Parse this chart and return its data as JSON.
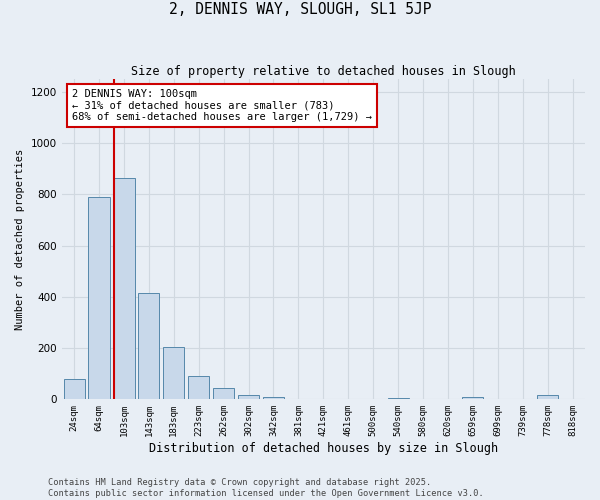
{
  "title": "2, DENNIS WAY, SLOUGH, SL1 5JP",
  "subtitle": "Size of property relative to detached houses in Slough",
  "xlabel": "Distribution of detached houses by size in Slough",
  "ylabel": "Number of detached properties",
  "bins": [
    "24sqm",
    "64sqm",
    "103sqm",
    "143sqm",
    "183sqm",
    "223sqm",
    "262sqm",
    "302sqm",
    "342sqm",
    "381sqm",
    "421sqm",
    "461sqm",
    "500sqm",
    "540sqm",
    "580sqm",
    "620sqm",
    "659sqm",
    "699sqm",
    "739sqm",
    "778sqm",
    "818sqm"
  ],
  "values": [
    80,
    790,
    865,
    415,
    205,
    90,
    45,
    15,
    10,
    0,
    0,
    0,
    0,
    5,
    0,
    0,
    10,
    0,
    0,
    15,
    0
  ],
  "bar_color": "#c8d8ea",
  "bar_edge_color": "#5588aa",
  "background_color": "#e8eef5",
  "grid_color": "#d0d8e0",
  "vline_x_index": 1.62,
  "vline_color": "#cc0000",
  "annotation_text": "2 DENNIS WAY: 100sqm\n← 31% of detached houses are smaller (783)\n68% of semi-detached houses are larger (1,729) →",
  "annotation_box_color": "#ffffff",
  "annotation_box_edge": "#cc0000",
  "footnote1": "Contains HM Land Registry data © Crown copyright and database right 2025.",
  "footnote2": "Contains public sector information licensed under the Open Government Licence v3.0.",
  "ylim": [
    0,
    1250
  ],
  "yticks": [
    0,
    200,
    400,
    600,
    800,
    1000,
    1200
  ]
}
